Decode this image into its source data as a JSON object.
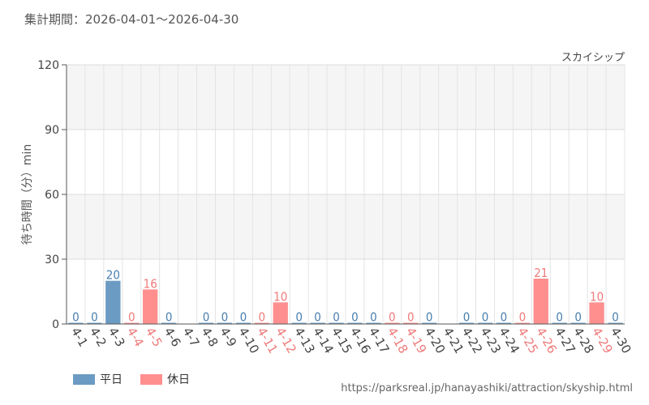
{
  "header": {
    "period": "集計期間：2026-04-01〜2026-04-30"
  },
  "source_url": "https://parksreal.jp/hanayashiki/attraction/skyship.html",
  "colors": {
    "weekday": "#6b9bc3",
    "holiday": "#ff8f8f",
    "weekday_text": "#4a7fae",
    "holiday_text": "#f07a7a"
  },
  "chart_data": {
    "type": "bar",
    "title": "スカイシップ",
    "ylabel": "待ち時間（分）min",
    "ylim": [
      0,
      120
    ],
    "yticks": [
      0,
      30,
      60,
      90,
      120
    ],
    "legend": [
      {
        "name": "平日",
        "kind": "weekday"
      },
      {
        "name": "休日",
        "kind": "holiday"
      }
    ],
    "categories": [
      "4-1",
      "4-2",
      "4-3",
      "4-4",
      "4-5",
      "4-6",
      "4-7",
      "4-8",
      "4-9",
      "4-10",
      "4-11",
      "4-12",
      "4-13",
      "4-14",
      "4-15",
      "4-16",
      "4-17",
      "4-18",
      "4-19",
      "4-20",
      "4-21",
      "4-22",
      "4-23",
      "4-24",
      "4-25",
      "4-26",
      "4-27",
      "4-28",
      "4-29",
      "4-30"
    ],
    "day_types": [
      "weekday",
      "weekday",
      "weekday",
      "holiday",
      "holiday",
      "weekday",
      "weekday",
      "weekday",
      "weekday",
      "weekday",
      "holiday",
      "holiday",
      "weekday",
      "weekday",
      "weekday",
      "weekday",
      "weekday",
      "holiday",
      "holiday",
      "weekday",
      "weekday",
      "weekday",
      "weekday",
      "weekday",
      "holiday",
      "holiday",
      "weekday",
      "weekday",
      "holiday",
      "weekday"
    ],
    "values": [
      0,
      0,
      20,
      0,
      16,
      0,
      null,
      0,
      0,
      0,
      0,
      10,
      0,
      0,
      0,
      0,
      0,
      0,
      0,
      0,
      null,
      0,
      0,
      0,
      0,
      21,
      0,
      0,
      10,
      0
    ]
  }
}
